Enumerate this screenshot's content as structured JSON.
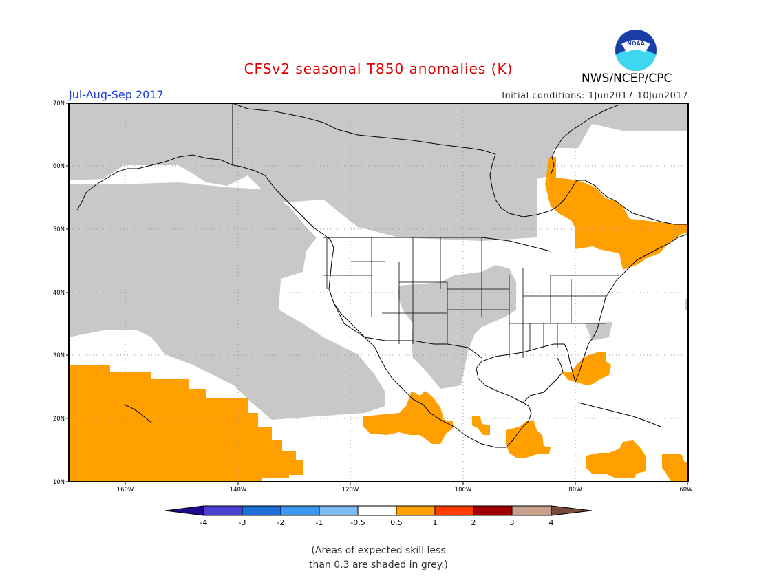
{
  "header": {
    "title": "CFSv2 seasonal T850 anomalies (K)",
    "organization": "NWS/NCEP/CPC",
    "logo_text": "NOAA",
    "season": "Jul-Aug-Sep 2017",
    "initial_conditions": "Initial conditions: 1Jun2017-10Jun2017"
  },
  "map": {
    "lat_labels": [
      "70N",
      "60N",
      "50N",
      "40N",
      "30N",
      "20N",
      "10N"
    ],
    "lon_labels": [
      "160W",
      "140W",
      "120W",
      "100W",
      "80W",
      "60W"
    ],
    "skill_mask_color": "#c8c8c8",
    "ocean_land_color": "#ffffff"
  },
  "legend": {
    "boundaries": [
      "-4",
      "-3",
      "-2",
      "-1",
      "-0.5",
      "0.5",
      "1",
      "2",
      "3",
      "4"
    ],
    "colors": [
      "#1f0a8f",
      "#4a3fd0",
      "#1f6fd9",
      "#3e97ee",
      "#7fbcf2",
      "#ffffff",
      "#ff9f00",
      "#ff3c00",
      "#a00000",
      "#c9a08a",
      "#7a4a3a"
    ]
  },
  "footnote": {
    "line1": "(Areas of expected skill less",
    "line2": "than 0.3 are shaded in grey.)"
  }
}
